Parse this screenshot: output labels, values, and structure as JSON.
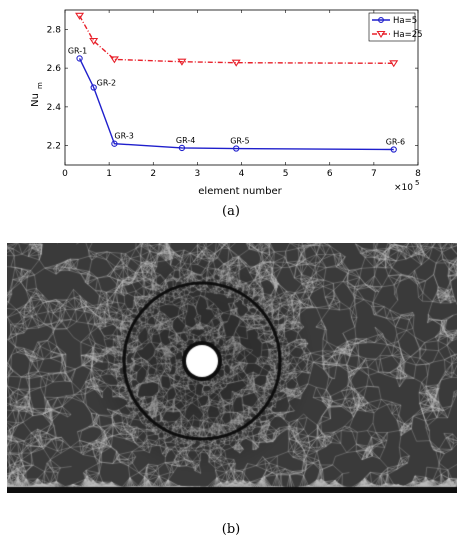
{
  "panel_a_label": "(a)",
  "panel_b_label": "(b)",
  "chart_data": {
    "type": "line",
    "xlabel": "element number",
    "ylabel_main": "Nu",
    "ylabel_sub": "m",
    "x_exponent_base": "×10",
    "x_exponent_power": "5",
    "xlim": [
      0,
      8
    ],
    "ylim": [
      2.1,
      2.9
    ],
    "xticks": [
      "0",
      "1",
      "2",
      "3",
      "4",
      "5",
      "6",
      "7",
      "8"
    ],
    "yticks": [
      "2.2",
      "2.4",
      "2.6",
      "2.8"
    ],
    "legend_position": "top-right",
    "x": [
      0.33,
      0.65,
      1.12,
      2.65,
      3.88,
      7.45
    ],
    "point_labels": [
      "GR-1",
      "GR-2",
      "GR-3",
      "GR-4",
      "GR-5",
      "GR-6"
    ],
    "series": [
      {
        "name": "Ha=5",
        "color": "#1f1fcc",
        "marker": "circle",
        "line": "solid",
        "values": [
          2.65,
          2.5,
          2.21,
          2.188,
          2.185,
          2.18
        ]
      },
      {
        "name": "Ha=25",
        "color": "#e8202a",
        "marker": "triangle-down",
        "line": "dashdot",
        "values": [
          2.87,
          2.74,
          2.645,
          2.633,
          2.628,
          2.625
        ]
      }
    ]
  },
  "mesh": {
    "type": "unstructured-triangle-mesh",
    "colors": {
      "background": "#3a3a3a",
      "dense": "#0e0e0e",
      "light": "#bdbdbd",
      "hole": "#ffffff"
    }
  }
}
